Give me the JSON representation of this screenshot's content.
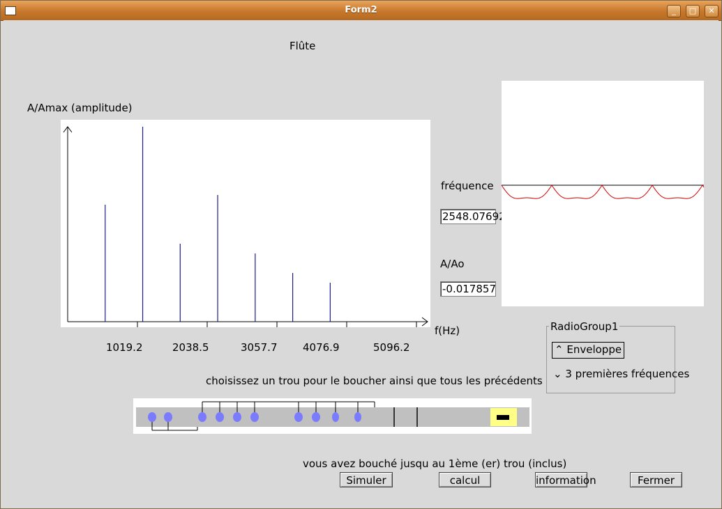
{
  "window": {
    "title": "Form2",
    "controls": [
      "minimize",
      "maximize",
      "close"
    ]
  },
  "header": {
    "instrument": "Flûte"
  },
  "spectrum": {
    "ylabel": "A/Amax (amplitude)",
    "xlabel": "f(Hz)",
    "tick_labels": [
      "1019.2",
      "2038.5",
      "3057.7",
      "4076.9",
      "5096.2"
    ],
    "line_color": "#1a1a8c"
  },
  "chart_data": {
    "type": "bar",
    "title": "",
    "xlabel": "f(Hz)",
    "ylabel": "A/Amax (amplitude)",
    "x_ticks": [
      1019.2,
      2038.5,
      3057.7,
      4076.9,
      5096.2
    ],
    "xlim": [
      0,
      5096.2
    ],
    "ylim": [
      0,
      1
    ],
    "series": [
      {
        "x": [
          548,
          1096,
          1644,
          2192,
          2740,
          3288,
          3836
        ],
        "values": [
          0.6,
          1.0,
          0.4,
          0.65,
          0.35,
          0.25,
          0.2
        ]
      }
    ]
  },
  "right_panel": {
    "freq_label": "fréquence",
    "freq_value": "2548.07692",
    "amp_label": "A/Ao",
    "amp_value": "-0.017857",
    "wave_color": "#cc0000"
  },
  "radio_group": {
    "title": "RadioGroup1",
    "options": [
      "Enveloppe",
      "3 premières fréquences"
    ],
    "selected": 0
  },
  "flute": {
    "instruction": "choisissez un trou pour le boucher ainsi que tous les précédents",
    "hole_color": "#7b7bff",
    "mouthpiece_color": "#ffff88"
  },
  "status": "vous avez bouché jusqu au 1ème (er) trou (inclus)",
  "buttons": {
    "simulate": "Simuler",
    "calc": "calcul",
    "info": "information",
    "close": "Fermer"
  }
}
